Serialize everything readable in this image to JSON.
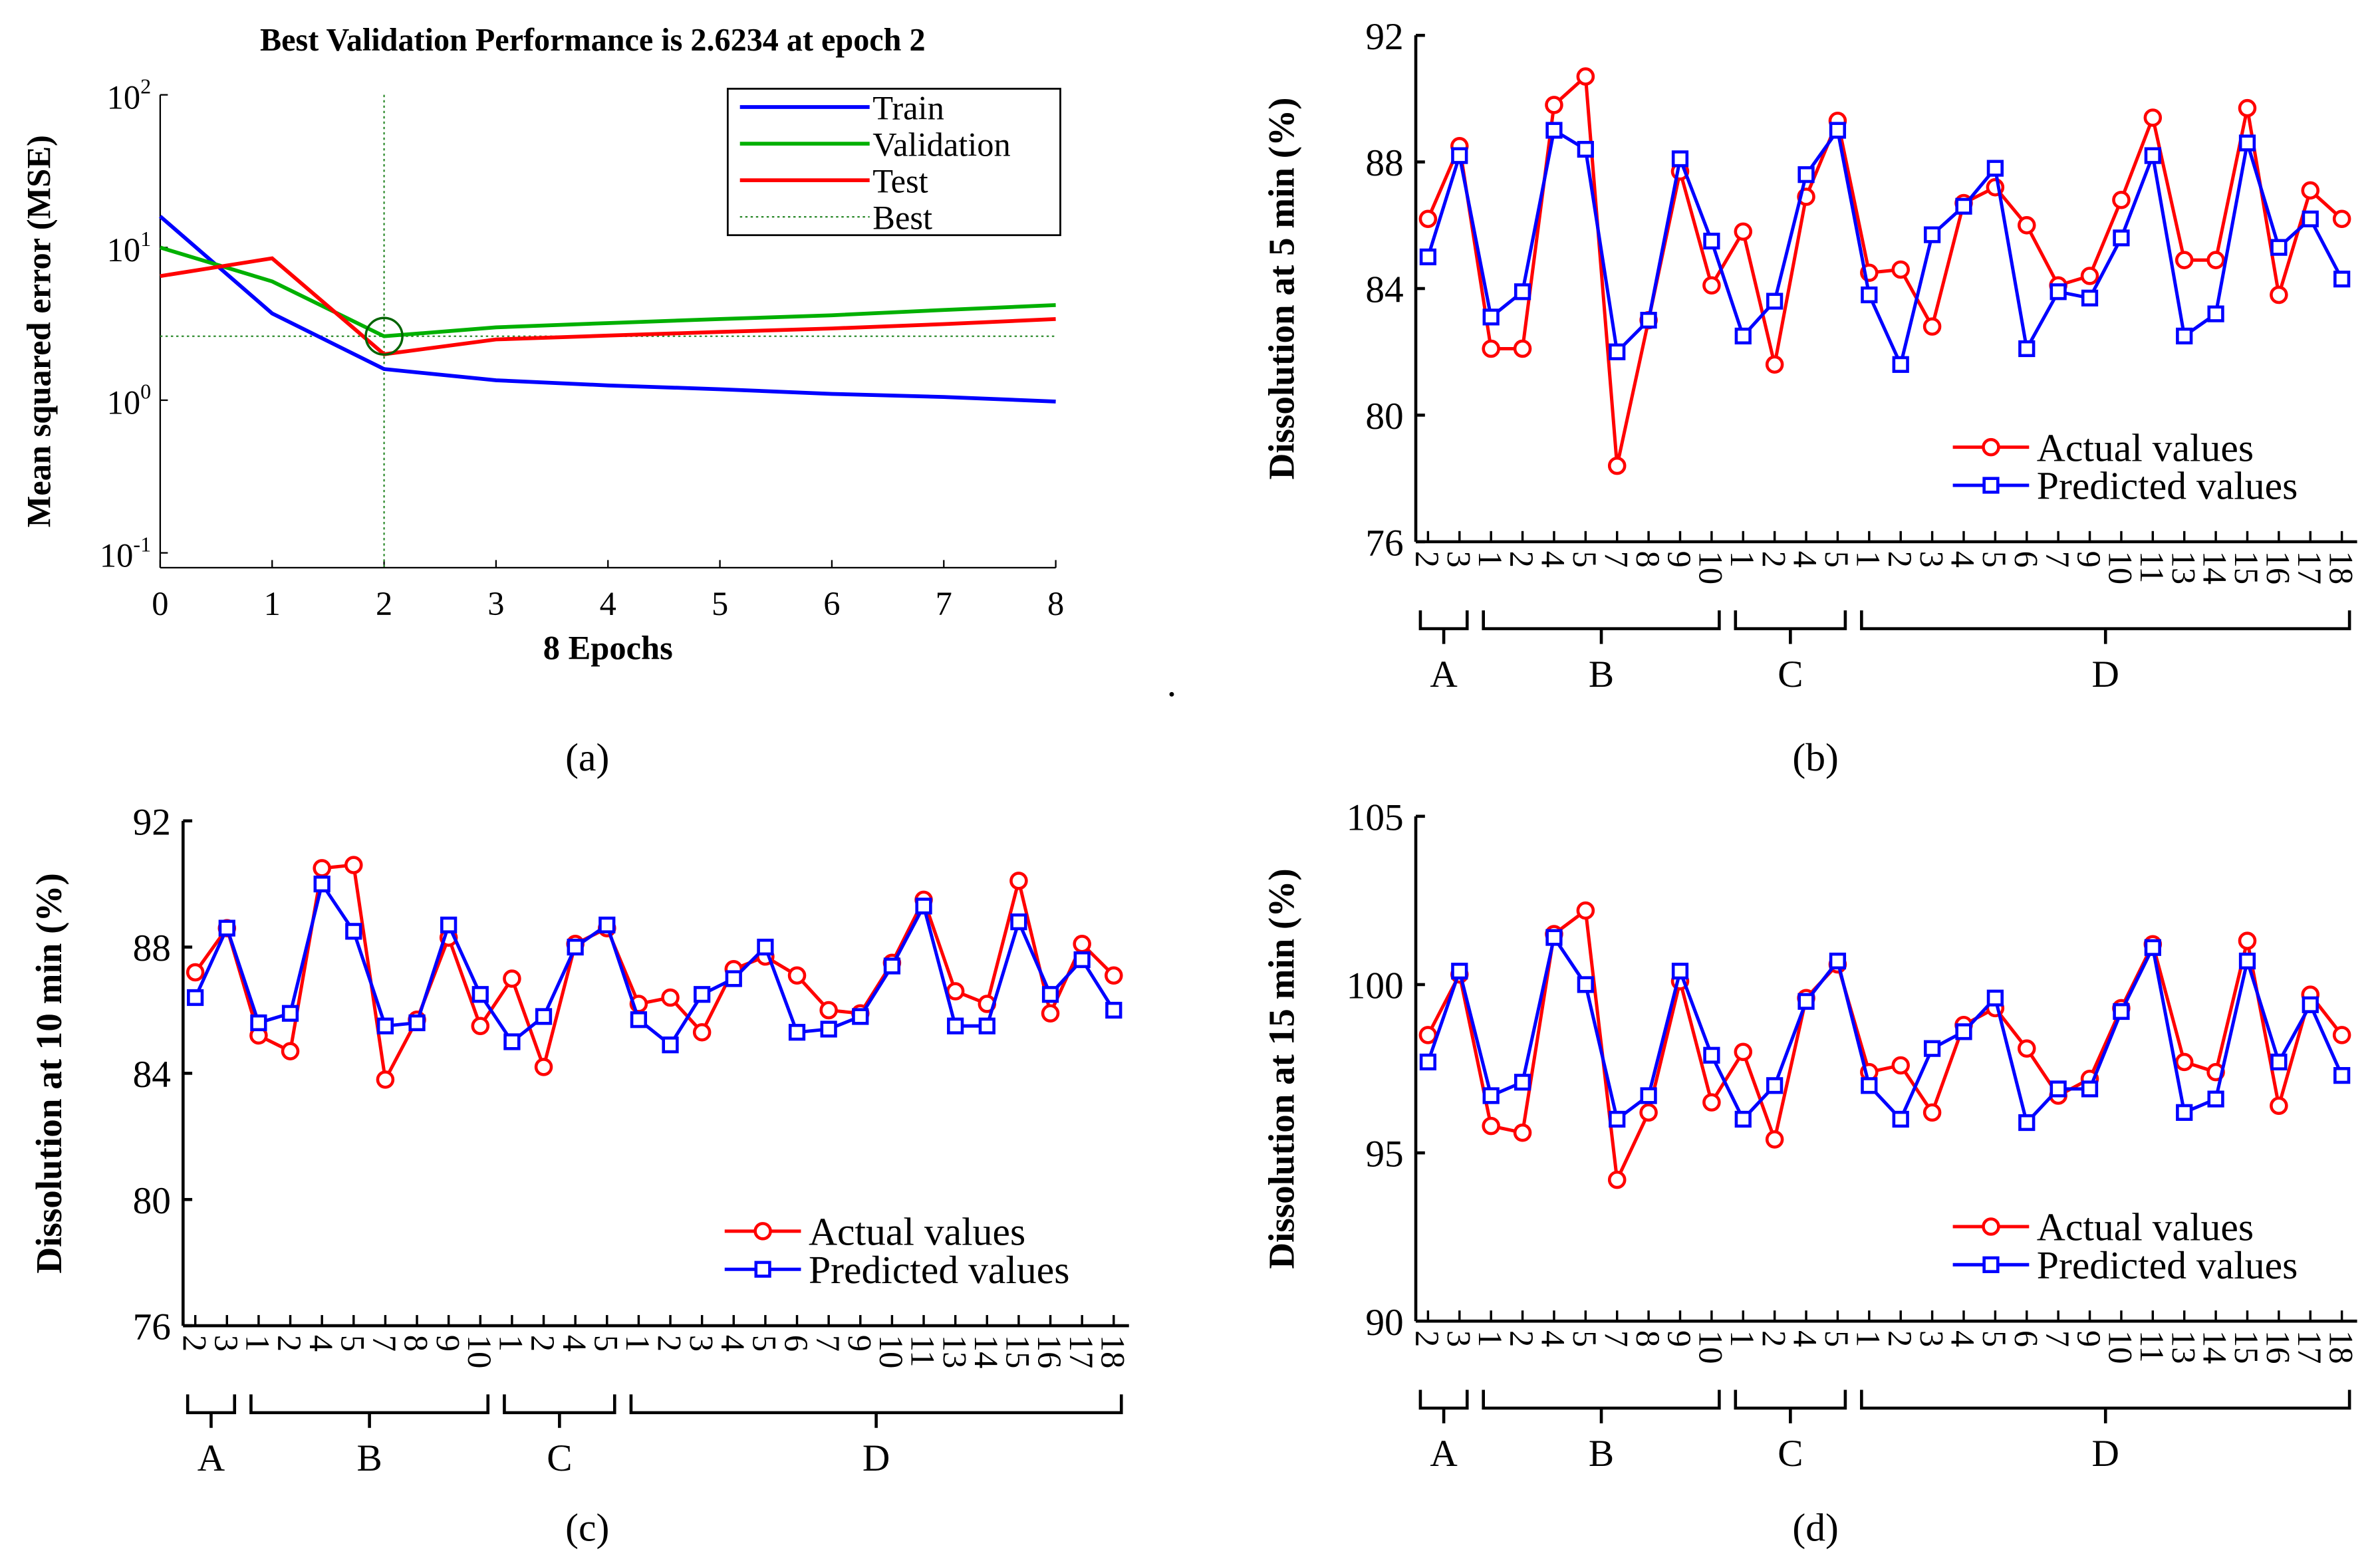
{
  "colors": {
    "train": "#0000ff",
    "validation": "#00b000",
    "test": "#ff0000",
    "best": "#2e8b2e",
    "actual": "#ff0000",
    "predicted": "#0000ff"
  },
  "captions": [
    "(a)",
    "(b)",
    "(c)",
    "(d)"
  ],
  "chart_data": [
    {
      "type": "line",
      "title": "Best Validation Performance is 2.6234 at epoch 2",
      "xlabel": "8 Epochs",
      "ylabel": "Mean squared error (MSE)",
      "yscale": "log",
      "ylim": [
        0.08,
        100
      ],
      "xlim": [
        0,
        8
      ],
      "xticks": [
        "0",
        "1",
        "2",
        "3",
        "4",
        "5",
        "6",
        "7",
        "8"
      ],
      "yticks": [
        {
          "base": "10",
          "exp": "2",
          "value": 100
        },
        {
          "base": "10",
          "exp": "1",
          "value": 10
        },
        {
          "base": "10",
          "exp": "0",
          "value": 1
        },
        {
          "base": "10",
          "exp": "-1",
          "value": 0.1
        }
      ],
      "x": [
        0,
        1,
        2,
        3,
        4,
        5,
        6,
        7,
        8
      ],
      "series": [
        {
          "name": "Train",
          "color_key": "train",
          "values": [
            16,
            3.7,
            1.6,
            1.35,
            1.25,
            1.18,
            1.1,
            1.05,
            0.98
          ]
        },
        {
          "name": "Validation",
          "color_key": "validation",
          "values": [
            10,
            6,
            2.6234,
            3.0,
            3.2,
            3.4,
            3.6,
            3.9,
            4.2
          ]
        },
        {
          "name": "Test",
          "color_key": "test",
          "values": [
            6.5,
            8.5,
            2.0,
            2.5,
            2.65,
            2.8,
            2.95,
            3.15,
            3.4
          ]
        }
      ],
      "best": {
        "label": "Best",
        "epoch": 2,
        "value": 2.6234
      },
      "legend_position": "top-right"
    },
    {
      "type": "line",
      "ylabel": "Dissolution at 5 min (%)",
      "ylim": [
        76,
        92
      ],
      "yticks": [
        "76",
        "80",
        "84",
        "88",
        "92"
      ],
      "xticklabels": [
        "2",
        "3",
        "1",
        "2",
        "4",
        "5",
        "7",
        "8",
        "9",
        "10",
        "1",
        "2",
        "4",
        "5",
        "1",
        "2",
        "3",
        "4",
        "5",
        "6",
        "7",
        "9",
        "10",
        "11",
        "13",
        "14",
        "15",
        "16",
        "17",
        "18"
      ],
      "groups": [
        {
          "label": "A",
          "from": 0,
          "to": 1
        },
        {
          "label": "B",
          "from": 2,
          "to": 9
        },
        {
          "label": "C",
          "from": 10,
          "to": 13
        },
        {
          "label": "D",
          "from": 14,
          "to": 29
        }
      ],
      "series": [
        {
          "name": "Actual values",
          "color_key": "actual",
          "marker": "circle",
          "values": [
            86.2,
            88.5,
            82.1,
            82.1,
            89.8,
            90.7,
            78.4,
            83.0,
            87.7,
            84.1,
            85.8,
            81.6,
            86.9,
            89.3,
            84.5,
            84.6,
            82.8,
            86.7,
            87.2,
            86.0,
            84.1,
            84.4,
            86.8,
            89.4,
            84.9,
            84.9,
            89.7,
            83.8,
            87.1,
            86.2
          ]
        },
        {
          "name": "Predicted values",
          "color_key": "predicted",
          "marker": "square",
          "values": [
            85.0,
            88.2,
            83.1,
            83.9,
            89.0,
            88.4,
            82.0,
            83.0,
            88.1,
            85.5,
            82.5,
            83.6,
            87.6,
            89.0,
            83.8,
            81.6,
            85.7,
            86.6,
            87.8,
            82.1,
            83.9,
            83.7,
            85.6,
            88.2,
            82.5,
            83.2,
            88.6,
            85.3,
            86.2,
            84.3
          ]
        }
      ],
      "legend_position": "bottom-right"
    },
    {
      "type": "line",
      "ylabel": "Dissolution at 10 min (%)",
      "ylim": [
        76,
        92
      ],
      "yticks": [
        "76",
        "80",
        "84",
        "88",
        "92"
      ],
      "xticklabels": [
        "2",
        "3",
        "1",
        "2",
        "4",
        "5",
        "7",
        "8",
        "9",
        "10",
        "1",
        "2",
        "4",
        "5",
        "1",
        "2",
        "3",
        "4",
        "5",
        "6",
        "7",
        "9",
        "10",
        "11",
        "13",
        "14",
        "15",
        "16",
        "17",
        "18"
      ],
      "groups": [
        {
          "label": "A",
          "from": 0,
          "to": 1
        },
        {
          "label": "B",
          "from": 2,
          "to": 9
        },
        {
          "label": "C",
          "from": 10,
          "to": 13
        },
        {
          "label": "D",
          "from": 14,
          "to": 29
        }
      ],
      "series": [
        {
          "name": "Actual values",
          "color_key": "actual",
          "marker": "circle",
          "values": [
            87.2,
            88.6,
            85.2,
            84.7,
            90.5,
            90.6,
            83.8,
            85.7,
            88.3,
            85.5,
            87.0,
            84.2,
            88.1,
            88.6,
            86.2,
            86.4,
            85.3,
            87.3,
            87.7,
            87.1,
            86.0,
            85.9,
            87.5,
            89.5,
            86.6,
            86.2,
            90.1,
            85.9,
            88.1,
            87.1
          ]
        },
        {
          "name": "Predicted values",
          "color_key": "predicted",
          "marker": "square",
          "values": [
            86.4,
            88.6,
            85.6,
            85.9,
            90.0,
            88.5,
            85.5,
            85.6,
            88.7,
            86.5,
            85.0,
            85.8,
            88.0,
            88.7,
            85.7,
            84.9,
            86.5,
            87.0,
            88.0,
            85.3,
            85.4,
            85.8,
            87.4,
            89.3,
            85.5,
            85.5,
            88.8,
            86.5,
            87.6,
            86.0
          ]
        }
      ],
      "legend_position": "bottom-right"
    },
    {
      "type": "line",
      "ylabel": "Dissolution at 15 min (%)",
      "ylim": [
        90,
        105
      ],
      "yticks": [
        "90",
        "95",
        "100",
        "105"
      ],
      "xticklabels": [
        "2",
        "3",
        "1",
        "2",
        "4",
        "5",
        "7",
        "8",
        "9",
        "10",
        "1",
        "2",
        "4",
        "5",
        "1",
        "2",
        "3",
        "4",
        "5",
        "6",
        "7",
        "9",
        "10",
        "11",
        "13",
        "14",
        "15",
        "16",
        "17",
        "18"
      ],
      "groups": [
        {
          "label": "A",
          "from": 0,
          "to": 1
        },
        {
          "label": "B",
          "from": 2,
          "to": 9
        },
        {
          "label": "C",
          "from": 10,
          "to": 13
        },
        {
          "label": "D",
          "from": 14,
          "to": 29
        }
      ],
      "series": [
        {
          "name": "Actual values",
          "color_key": "actual",
          "marker": "circle",
          "values": [
            98.5,
            100.3,
            95.8,
            95.6,
            101.5,
            102.2,
            94.2,
            96.2,
            100.1,
            96.5,
            98.0,
            95.4,
            99.6,
            100.6,
            97.4,
            97.6,
            96.2,
            98.8,
            99.3,
            98.1,
            96.7,
            97.2,
            99.3,
            101.2,
            97.7,
            97.4,
            101.3,
            96.4,
            99.7,
            98.5
          ]
        },
        {
          "name": "Predicted values",
          "color_key": "predicted",
          "marker": "square",
          "values": [
            97.7,
            100.4,
            96.7,
            97.1,
            101.4,
            100.0,
            96.0,
            96.7,
            100.4,
            97.9,
            96.0,
            97.0,
            99.5,
            100.7,
            97.0,
            96.0,
            98.1,
            98.6,
            99.6,
            95.9,
            96.9,
            96.9,
            99.2,
            101.1,
            96.2,
            96.6,
            100.7,
            97.7,
            99.4,
            97.3
          ]
        }
      ],
      "legend_position": "bottom-right"
    }
  ]
}
